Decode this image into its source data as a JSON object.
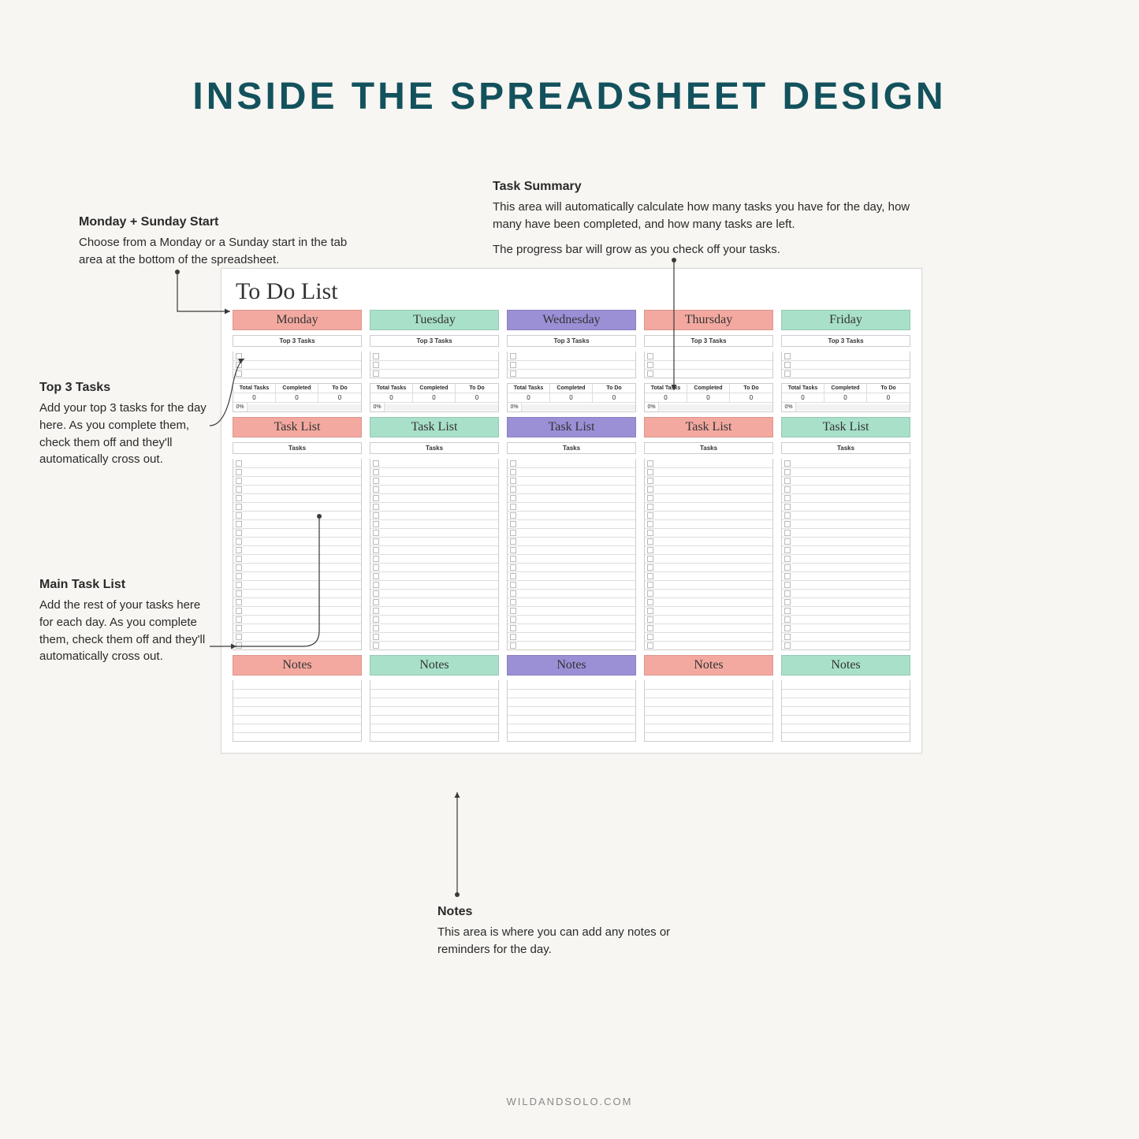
{
  "title": "INSIDE THE SPREADSHEET DESIGN",
  "footer": "WILDANDSOLO.COM",
  "callouts": {
    "start": {
      "heading": "Monday + Sunday Start",
      "body": "Choose from a Monday or a Sunday start in the tab area at the bottom of the spreadsheet."
    },
    "summary": {
      "heading": "Task Summary",
      "body1": "This area will automatically calculate how many tasks you have for the day, how many have been completed, and how many tasks are left.",
      "body2": "The progress bar will grow as you check off your tasks."
    },
    "top3": {
      "heading": "Top 3 Tasks",
      "body": "Add your top 3 tasks for the day here. As you complete them, check them off and they'll automatically cross out."
    },
    "main": {
      "heading": "Main Task List",
      "body": "Add the rest of your tasks here for each day. As you complete them, check them off and they'll automatically cross out."
    },
    "notes": {
      "heading": "Notes",
      "body": "This area is where you can add any notes or reminders for the day."
    }
  },
  "sheet": {
    "title": "To Do List",
    "labels": {
      "top3": "Top 3 Tasks",
      "tasklist": "Task List",
      "tasks_sub": "Tasks",
      "notes": "Notes",
      "total": "Total Tasks",
      "completed": "Completed",
      "todo": "To Do",
      "zero": "0",
      "pct": "0%"
    },
    "days": [
      {
        "name": "Monday",
        "color": "#f3a9a0"
      },
      {
        "name": "Tuesday",
        "color": "#a8e0c9"
      },
      {
        "name": "Wednesday",
        "color": "#9b8fd6"
      },
      {
        "name": "Thursday",
        "color": "#f3a9a0"
      },
      {
        "name": "Friday",
        "color": "#a8e0c9"
      }
    ],
    "task_rows": 22,
    "top3_rows": 3,
    "notes_rows": 7
  },
  "colors": {
    "title": "#13525d",
    "bg": "#f7f6f2",
    "line": "#3a3a3a"
  }
}
